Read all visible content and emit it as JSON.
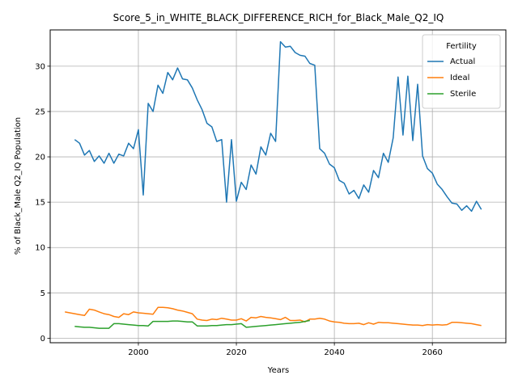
{
  "chart_data": {
    "type": "line",
    "title": "Score_5_in_WHITE_BLACK_DIFFERENCE_RICH_for_Black_Male_Q2_IQ",
    "xlabel": "Years",
    "ylabel": "% of Black_Male Q2_IQ Population",
    "xlim": [
      1982,
      2075
    ],
    "ylim": [
      -0.5,
      34
    ],
    "xticks": [
      2000,
      2020,
      2040,
      2060
    ],
    "yticks": [
      0,
      5,
      10,
      15,
      20,
      25,
      30
    ],
    "grid": true,
    "legend": {
      "title": "Fertility",
      "placement": "top-right"
    },
    "series": [
      {
        "name": "Actual",
        "color": "#1f77b4",
        "x": [
          1987,
          1988,
          1989,
          1990,
          1991,
          1992,
          1993,
          1994,
          1995,
          1996,
          1997,
          1998,
          1999,
          2000,
          2001,
          2002,
          2003,
          2004,
          2005,
          2006,
          2007,
          2008,
          2009,
          2010,
          2011,
          2012,
          2013,
          2014,
          2015,
          2016,
          2017,
          2018,
          2019,
          2020,
          2021,
          2022,
          2023,
          2024,
          2025,
          2026,
          2027,
          2028,
          2029,
          2030,
          2031,
          2032,
          2033,
          2034,
          2035,
          2036,
          2037,
          2038,
          2039,
          2040,
          2041,
          2042,
          2043,
          2044,
          2045,
          2046,
          2047,
          2048,
          2049,
          2050,
          2051,
          2052,
          2053,
          2054,
          2055,
          2056,
          2057,
          2058,
          2059,
          2060,
          2061,
          2062,
          2063,
          2064,
          2065,
          2066,
          2067,
          2068,
          2069,
          2070
        ],
        "values": [
          21.9,
          21.5,
          20.2,
          20.7,
          19.5,
          20.1,
          19.3,
          20.4,
          19.3,
          20.3,
          20.1,
          21.5,
          20.9,
          23.0,
          15.8,
          25.9,
          25.0,
          27.9,
          27.0,
          29.3,
          28.5,
          29.8,
          28.6,
          28.5,
          27.6,
          26.3,
          25.2,
          23.7,
          23.3,
          21.7,
          21.9,
          15.0,
          21.9,
          15.1,
          17.2,
          16.4,
          19.1,
          18.1,
          21.1,
          20.2,
          22.6,
          21.7,
          32.7,
          32.1,
          32.2,
          31.5,
          31.2,
          31.1,
          30.3,
          30.1,
          20.9,
          20.4,
          19.2,
          18.8,
          17.4,
          17.1,
          15.9,
          16.3,
          15.4,
          16.9,
          16.1,
          18.5,
          17.7,
          20.4,
          19.4,
          22.1,
          28.8,
          22.4,
          28.9,
          21.8,
          28.0,
          20.1,
          18.7,
          18.2,
          17.0,
          16.4,
          15.6,
          14.9,
          14.8,
          14.1,
          14.6,
          14.0,
          15.1,
          14.2
        ]
      },
      {
        "name": "Ideal",
        "color": "#ff7f0e",
        "x": [
          1985,
          1986,
          1987,
          1988,
          1989,
          1990,
          1991,
          1992,
          1993,
          1994,
          1995,
          1996,
          1997,
          1998,
          1999,
          2000,
          2001,
          2002,
          2003,
          2004,
          2005,
          2006,
          2007,
          2008,
          2009,
          2010,
          2011,
          2012,
          2013,
          2014,
          2015,
          2016,
          2017,
          2018,
          2019,
          2020,
          2021,
          2022,
          2023,
          2024,
          2025,
          2026,
          2027,
          2028,
          2029,
          2030,
          2031,
          2032,
          2033,
          2034,
          2035,
          2036,
          2037,
          2038,
          2039,
          2040,
          2041,
          2042,
          2043,
          2044,
          2045,
          2046,
          2047,
          2048,
          2049,
          2050,
          2051,
          2052,
          2053,
          2054,
          2055,
          2056,
          2057,
          2058,
          2059,
          2060,
          2061,
          2062,
          2063,
          2064,
          2065,
          2066,
          2067,
          2068,
          2069,
          2070
        ],
        "values": [
          2.9,
          2.8,
          2.7,
          2.6,
          2.5,
          3.2,
          3.1,
          2.9,
          2.7,
          2.6,
          2.4,
          2.3,
          2.7,
          2.6,
          2.9,
          2.8,
          2.75,
          2.7,
          2.65,
          3.4,
          3.4,
          3.35,
          3.25,
          3.1,
          3.0,
          2.85,
          2.7,
          2.1,
          2.0,
          1.95,
          2.1,
          2.05,
          2.2,
          2.1,
          2.0,
          2.0,
          2.15,
          1.9,
          2.3,
          2.25,
          2.4,
          2.3,
          2.25,
          2.15,
          2.05,
          2.3,
          1.95,
          1.95,
          2.0,
          1.8,
          2.1,
          2.1,
          2.2,
          2.1,
          1.9,
          1.8,
          1.75,
          1.65,
          1.6,
          1.6,
          1.65,
          1.5,
          1.7,
          1.55,
          1.75,
          1.7,
          1.7,
          1.65,
          1.6,
          1.55,
          1.5,
          1.45,
          1.45,
          1.4,
          1.5,
          1.45,
          1.5,
          1.45,
          1.5,
          1.75,
          1.75,
          1.7,
          1.65,
          1.6,
          1.5,
          1.4
        ]
      },
      {
        "name": "Sterile",
        "color": "#2ca02c",
        "x": [
          1987,
          1988,
          1989,
          1990,
          1991,
          1992,
          1993,
          1994,
          1995,
          1996,
          1997,
          1998,
          1999,
          2000,
          2001,
          2002,
          2003,
          2004,
          2005,
          2006,
          2007,
          2008,
          2009,
          2010,
          2011,
          2012,
          2013,
          2014,
          2015,
          2016,
          2017,
          2018,
          2019,
          2020,
          2021,
          2022,
          2023,
          2024,
          2025,
          2026,
          2027,
          2028,
          2029,
          2030,
          2031,
          2032,
          2033,
          2034,
          2035
        ],
        "values": [
          1.3,
          1.25,
          1.2,
          1.2,
          1.15,
          1.1,
          1.1,
          1.1,
          1.6,
          1.6,
          1.55,
          1.5,
          1.45,
          1.4,
          1.4,
          1.35,
          1.85,
          1.85,
          1.85,
          1.85,
          1.9,
          1.9,
          1.85,
          1.8,
          1.8,
          1.35,
          1.35,
          1.35,
          1.4,
          1.4,
          1.45,
          1.5,
          1.5,
          1.55,
          1.6,
          1.2,
          1.25,
          1.3,
          1.35,
          1.4,
          1.45,
          1.5,
          1.55,
          1.6,
          1.65,
          1.7,
          1.75,
          1.85,
          1.95
        ]
      }
    ]
  }
}
